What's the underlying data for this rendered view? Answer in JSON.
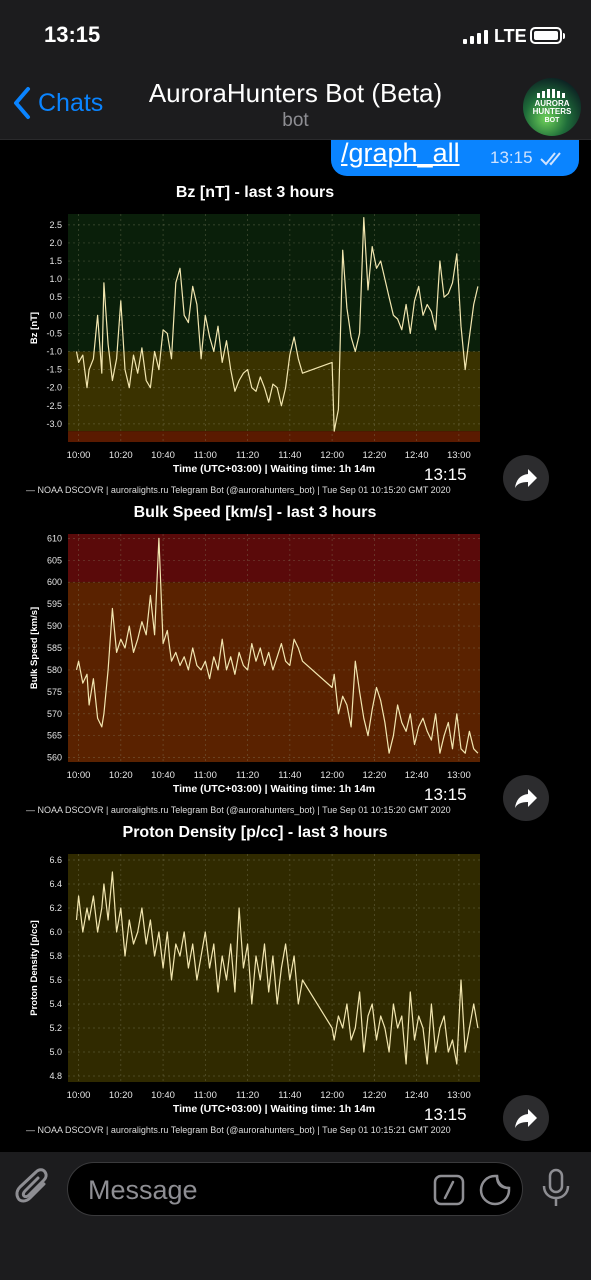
{
  "status_bar": {
    "time": "13:15",
    "network": "LTE"
  },
  "nav": {
    "back_label": "Chats",
    "title": "AuroraHunters Bot (Beta)",
    "subtitle": "bot",
    "avatar_text": [
      "AURORA",
      "HUNTERS",
      "BOT"
    ]
  },
  "outgoing": {
    "text": "/graph_all",
    "time": "13:15"
  },
  "charts": [
    {
      "title": "Bz [nT] - last 3 hours",
      "ylabel": "Bz [nT]",
      "xlabel": "Time (UTC+03:00) | Waiting time: 1h 14m",
      "x_ticks": [
        "10:00",
        "10:20",
        "10:40",
        "11:00",
        "11:20",
        "11:40",
        "12:00",
        "12:20",
        "12:40",
        "13:00"
      ],
      "y_ticks": [
        "2.5",
        "2.0",
        "1.5",
        "1.0",
        "0.5",
        "0.0",
        "-0.5",
        "-1.0",
        "-1.5",
        "-2.0",
        "-2.5",
        "-3.0"
      ],
      "footer": "— NOAA DSCOVR | auroralights.ru Telegram Bot (@aurorahunters_bot) | Tue Sep 01 10:15:20 GMT 2020",
      "time": "13:15"
    },
    {
      "title": "Bulk Speed [km/s] - last 3 hours",
      "ylabel": "Bulk Speed [km/s]",
      "xlabel": "Time (UTC+03:00) | Waiting time: 1h 14m",
      "x_ticks": [
        "10:00",
        "10:20",
        "10:40",
        "11:00",
        "11:20",
        "11:40",
        "12:00",
        "12:20",
        "12:40",
        "13:00"
      ],
      "y_ticks": [
        "610",
        "605",
        "600",
        "595",
        "590",
        "585",
        "580",
        "575",
        "570",
        "565",
        "560"
      ],
      "footer": "— NOAA DSCOVR | auroralights.ru Telegram Bot (@aurorahunters_bot) | Tue Sep 01 10:15:20 GMT 2020",
      "time": "13:15"
    },
    {
      "title": "Proton Density [p/cc] - last 3 hours",
      "ylabel": "Proton Density [p/cc]",
      "xlabel": "Time (UTC+03:00) | Waiting time: 1h 14m",
      "x_ticks": [
        "10:00",
        "10:20",
        "10:40",
        "11:00",
        "11:20",
        "11:40",
        "12:00",
        "12:20",
        "12:40",
        "13:00"
      ],
      "y_ticks": [
        "6.6",
        "6.4",
        "6.2",
        "6.0",
        "5.8",
        "5.6",
        "5.4",
        "5.2",
        "5.0",
        "4.8"
      ],
      "footer": "— NOAA DSCOVR | auroralights.ru Telegram Bot (@aurorahunters_bot) | Tue Sep 01 10:15:21 GMT 2020",
      "time": "13:15"
    }
  ],
  "chart_data": [
    {
      "type": "line",
      "title": "Bz [nT] - last 3 hours",
      "xlabel": "Time (UTC+03:00) | Waiting time: 1h 14m",
      "ylabel": "Bz [nT]",
      "ylim": [
        -3.5,
        2.8
      ],
      "x_range": [
        "09:55",
        "13:10"
      ],
      "bands": [
        {
          "from": 2.8,
          "to": -1.0,
          "color": "#0a1f0a"
        },
        {
          "from": -1.0,
          "to": -3.2,
          "color": "#3a3200"
        },
        {
          "from": -3.2,
          "to": -3.5,
          "color": "#5a1a00"
        }
      ],
      "x": [
        "09:59",
        "10:00",
        "10:02",
        "10:04",
        "10:05",
        "10:07",
        "10:09",
        "10:11",
        "10:12",
        "10:14",
        "10:16",
        "10:18",
        "10:20",
        "10:22",
        "10:24",
        "10:26",
        "10:28",
        "10:30",
        "10:32",
        "10:34",
        "10:36",
        "10:38",
        "10:40",
        "10:42",
        "10:44",
        "10:46",
        "10:48",
        "10:50",
        "10:52",
        "10:54",
        "10:56",
        "10:58",
        "11:00",
        "11:02",
        "11:04",
        "11:06",
        "11:08",
        "11:10",
        "11:12",
        "11:14",
        "11:16",
        "11:18",
        "11:20",
        "11:22",
        "11:24",
        "11:26",
        "11:28",
        "11:30",
        "11:32",
        "11:34",
        "11:36",
        "11:38",
        "11:40",
        "11:42",
        "11:44",
        "11:46",
        "12:00",
        "12:01",
        "12:03",
        "12:05",
        "12:07",
        "12:09",
        "12:11",
        "12:13",
        "12:15",
        "12:17",
        "12:19",
        "12:21",
        "12:23",
        "12:25",
        "12:27",
        "12:29",
        "12:31",
        "12:33",
        "12:35",
        "12:37",
        "12:39",
        "12:41",
        "12:43",
        "12:45",
        "12:47",
        "12:49",
        "12:51",
        "12:53",
        "12:55",
        "12:57",
        "12:59",
        "13:01",
        "13:03",
        "13:05",
        "13:07",
        "13:09"
      ],
      "values": [
        -1.0,
        -1.3,
        -1.1,
        -2.0,
        -1.5,
        -1.2,
        0.0,
        -1.6,
        0.9,
        -0.8,
        -1.8,
        -1.2,
        0.4,
        -1.5,
        -2.0,
        -1.1,
        -1.6,
        -0.9,
        -1.8,
        -2.0,
        -1.0,
        -1.5,
        -0.4,
        -0.5,
        -1.2,
        0.9,
        1.3,
        0.0,
        -0.2,
        0.8,
        0.3,
        -1.2,
        0.0,
        -0.6,
        -1.0,
        -0.3,
        -1.3,
        -0.7,
        -1.5,
        -2.1,
        -1.8,
        -1.6,
        -1.5,
        -2.0,
        -2.1,
        -1.7,
        -2.0,
        -2.4,
        -1.9,
        -2.0,
        -2.5,
        -2.0,
        -1.1,
        -0.6,
        -1.2,
        -1.6,
        -1.3,
        -3.2,
        -2.6,
        1.8,
        0.2,
        -0.6,
        -1.0,
        -0.5,
        2.7,
        0.7,
        1.9,
        1.3,
        1.5,
        1.0,
        0.5,
        0.0,
        -0.1,
        -0.4,
        0.3,
        -0.5,
        0.4,
        0.8,
        0.0,
        0.3,
        0.1,
        -0.4,
        1.5,
        0.5,
        0.6,
        0.9,
        1.7,
        -0.3,
        -1.5,
        -0.6,
        0.3,
        0.8
      ]
    },
    {
      "type": "line",
      "title": "Bulk Speed [km/s] - last 3 hours",
      "xlabel": "Time (UTC+03:00) | Waiting time: 1h 14m",
      "ylabel": "Bulk Speed [km/s]",
      "ylim": [
        559,
        611
      ],
      "x_range": [
        "09:55",
        "13:10"
      ],
      "bands": [
        {
          "from": 611,
          "to": 600,
          "color": "#5a0a0a"
        },
        {
          "from": 600,
          "to": 559,
          "color": "#5a2200"
        }
      ],
      "x": [
        "09:59",
        "10:00",
        "10:02",
        "10:04",
        "10:05",
        "10:07",
        "10:09",
        "10:11",
        "10:12",
        "10:14",
        "10:16",
        "10:18",
        "10:20",
        "10:22",
        "10:24",
        "10:26",
        "10:28",
        "10:30",
        "10:32",
        "10:34",
        "10:36",
        "10:38",
        "10:40",
        "10:42",
        "10:44",
        "10:46",
        "10:48",
        "10:50",
        "10:52",
        "10:54",
        "10:56",
        "10:58",
        "11:00",
        "11:02",
        "11:04",
        "11:06",
        "11:08",
        "11:10",
        "11:12",
        "11:14",
        "11:16",
        "11:18",
        "11:20",
        "11:22",
        "11:24",
        "11:26",
        "11:28",
        "11:30",
        "11:32",
        "11:34",
        "11:36",
        "11:38",
        "11:40",
        "11:42",
        "11:44",
        "11:46",
        "12:00",
        "12:01",
        "12:03",
        "12:05",
        "12:07",
        "12:09",
        "12:11",
        "12:13",
        "12:15",
        "12:17",
        "12:19",
        "12:21",
        "12:23",
        "12:25",
        "12:27",
        "12:29",
        "12:31",
        "12:33",
        "12:35",
        "12:37",
        "12:39",
        "12:41",
        "12:43",
        "12:45",
        "12:47",
        "12:49",
        "12:51",
        "12:53",
        "12:55",
        "12:57",
        "12:59",
        "13:01",
        "13:03",
        "13:05",
        "13:07",
        "13:09"
      ],
      "values": [
        580,
        582,
        577,
        579,
        572,
        578,
        569,
        567,
        570,
        580,
        594,
        584,
        587,
        585,
        590,
        584,
        587,
        591,
        588,
        597,
        588,
        610,
        586,
        589,
        582,
        584,
        581,
        583,
        580,
        585,
        581,
        580,
        582,
        578,
        583,
        580,
        587,
        580,
        583,
        579,
        584,
        581,
        580,
        586,
        582,
        585,
        581,
        584,
        580,
        583,
        586,
        582,
        581,
        587,
        585,
        582,
        576,
        579,
        570,
        574,
        572,
        567,
        582,
        575,
        569,
        565,
        571,
        576,
        573,
        568,
        561,
        565,
        572,
        568,
        566,
        570,
        563,
        567,
        569,
        566,
        564,
        570,
        561,
        565,
        568,
        562,
        570,
        562,
        561,
        566,
        562,
        561
      ]
    },
    {
      "type": "line",
      "title": "Proton Density [p/cc] - last 3 hours",
      "xlabel": "Time (UTC+03:00) | Waiting time: 1h 14m",
      "ylabel": "Proton Density [p/cc]",
      "ylim": [
        4.75,
        6.65
      ],
      "x_range": [
        "09:55",
        "13:10"
      ],
      "bands": [
        {
          "from": 6.65,
          "to": 4.75,
          "color": "#302a00"
        }
      ],
      "x": [
        "09:59",
        "10:00",
        "10:02",
        "10:04",
        "10:05",
        "10:07",
        "10:09",
        "10:11",
        "10:12",
        "10:14",
        "10:16",
        "10:18",
        "10:20",
        "10:22",
        "10:24",
        "10:26",
        "10:28",
        "10:30",
        "10:32",
        "10:34",
        "10:36",
        "10:38",
        "10:40",
        "10:42",
        "10:44",
        "10:46",
        "10:48",
        "10:50",
        "10:52",
        "10:54",
        "10:56",
        "10:58",
        "11:00",
        "11:02",
        "11:04",
        "11:06",
        "11:08",
        "11:10",
        "11:12",
        "11:14",
        "11:16",
        "11:18",
        "11:20",
        "11:22",
        "11:24",
        "11:26",
        "11:28",
        "11:30",
        "11:32",
        "11:34",
        "11:36",
        "11:38",
        "11:40",
        "11:42",
        "11:44",
        "11:46",
        "12:00",
        "12:01",
        "12:03",
        "12:05",
        "12:07",
        "12:09",
        "12:11",
        "12:13",
        "12:15",
        "12:17",
        "12:19",
        "12:21",
        "12:23",
        "12:25",
        "12:27",
        "12:29",
        "12:31",
        "12:33",
        "12:35",
        "12:37",
        "12:39",
        "12:41",
        "12:43",
        "12:45",
        "12:47",
        "12:49",
        "12:51",
        "12:53",
        "12:55",
        "12:57",
        "12:59",
        "13:01",
        "13:03",
        "13:05",
        "13:07",
        "13:09"
      ],
      "values": [
        6.1,
        6.3,
        6.0,
        6.2,
        6.1,
        6.3,
        6.0,
        6.2,
        6.4,
        6.1,
        6.5,
        6.0,
        6.2,
        5.8,
        6.1,
        5.9,
        6.0,
        6.2,
        5.9,
        6.1,
        5.8,
        6.0,
        5.7,
        6.0,
        5.6,
        5.9,
        5.8,
        6.0,
        5.7,
        5.9,
        5.6,
        5.8,
        6.0,
        5.7,
        5.9,
        5.5,
        5.8,
        5.6,
        5.9,
        5.5,
        6.2,
        5.7,
        5.9,
        5.4,
        5.8,
        5.6,
        5.9,
        5.5,
        5.8,
        5.4,
        5.7,
        5.9,
        5.6,
        5.8,
        5.4,
        5.6,
        5.2,
        5.1,
        5.3,
        5.2,
        5.4,
        5.1,
        5.2,
        5.5,
        5.0,
        5.3,
        5.4,
        5.1,
        5.3,
        5.2,
        5.0,
        5.4,
        5.2,
        5.3,
        4.9,
        5.5,
        5.1,
        5.3,
        5.2,
        4.9,
        5.4,
        5.0,
        5.2,
        5.3,
        5.0,
        5.1,
        4.9,
        5.6,
        5.0,
        5.2,
        5.4,
        5.2
      ]
    }
  ],
  "input": {
    "placeholder": "Message"
  },
  "colors": {
    "accent": "#0a84ff",
    "line": "#f2e6b0"
  }
}
